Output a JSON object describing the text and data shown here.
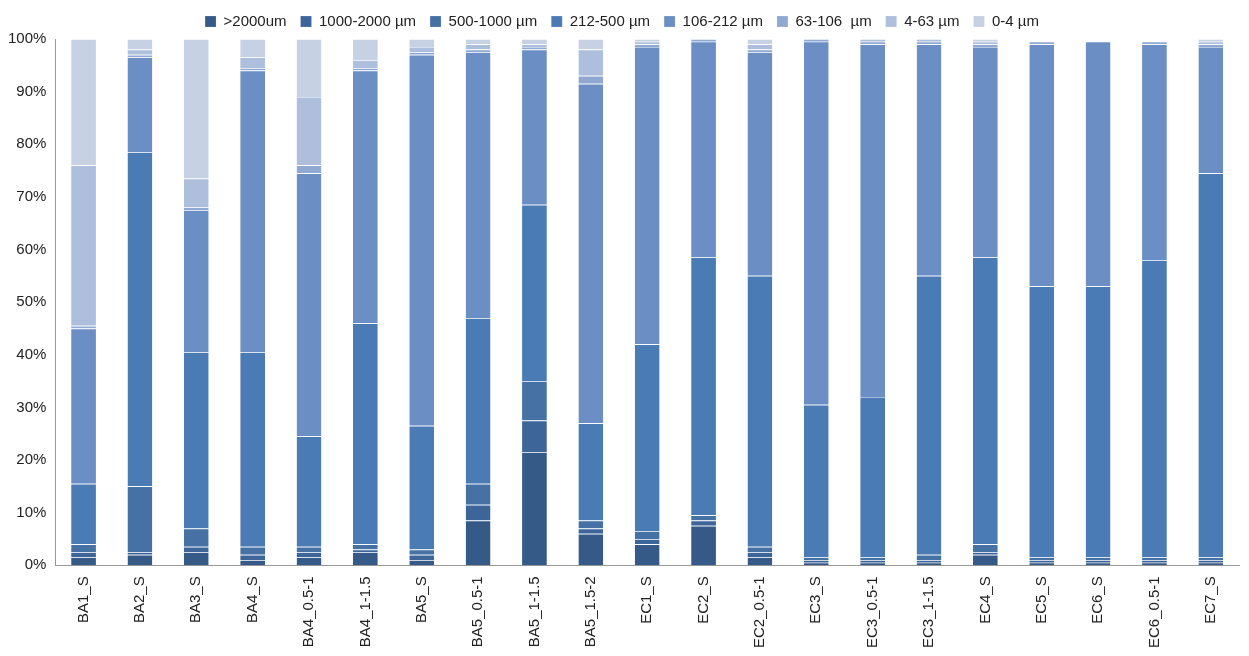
{
  "chart_data": {
    "type": "bar",
    "stacked": true,
    "legend": "top",
    "grid": false,
    "categories": [
      "BA1_S",
      "BA2_S",
      "BA3_S",
      "BA4_S",
      "BA4_0.5-1",
      "BA4_1-1.5",
      "BA5_S",
      "BA5_0.5-1",
      "BA5_1-1.5",
      "BA5_1.5-2",
      "EC1_S",
      "EC2_S",
      "EC2_0.5-1",
      "EC3_S",
      "EC3_0.5-1",
      "EC3_1-1.5",
      "EC4_S",
      "EC5_S",
      "EC6_S",
      "EC6_0.5-1",
      "EC7_S"
    ],
    "ylim": [
      0,
      100
    ],
    "yticks": [
      {
        "value": 0,
        "label": "0%"
      },
      {
        "value": 10,
        "label": "10%"
      },
      {
        "value": 20,
        "label": "20%"
      },
      {
        "value": 30,
        "label": "30%"
      },
      {
        "value": 40,
        "label": "40%"
      },
      {
        "value": 50,
        "label": "50%"
      },
      {
        "value": 60,
        "label": "60%"
      },
      {
        "value": 70,
        "label": "70%"
      },
      {
        "value": 80,
        "label": "80%"
      },
      {
        "value": 90,
        "label": "90%"
      },
      {
        "value": 100,
        "label": "100%"
      }
    ],
    "series": [
      {
        "name": ">2000um",
        "color": "#365a88",
        "values": [
          1.5,
          2,
          2.5,
          1,
          1.5,
          2.5,
          1,
          8.5,
          21.5,
          6,
          4,
          7.5,
          1.5,
          0.5,
          0.5,
          0.5,
          2,
          0.5,
          0.5,
          0.5,
          0.5
        ]
      },
      {
        "name": "1000-2000 µm",
        "color": "#3e6599",
        "values": [
          1,
          0.5,
          1,
          1,
          1,
          0.5,
          1,
          3,
          6,
          1,
          1,
          1,
          1,
          0.5,
          0.5,
          0.5,
          0.5,
          0.5,
          0.5,
          0.5,
          0.5
        ]
      },
      {
        "name": "500-1000 µm",
        "color": "#4571a5",
        "values": [
          1.5,
          12.5,
          3.5,
          1.5,
          1,
          1,
          1,
          4,
          7.5,
          1.5,
          1.5,
          1,
          1,
          0.5,
          0.5,
          1,
          1.5,
          0.5,
          0.5,
          0.5,
          0.5
        ]
      },
      {
        "name": "212-500 µm",
        "color": "#4a7bb5",
        "values": [
          11.5,
          63.5,
          33.5,
          37,
          21,
          42,
          23.5,
          31.5,
          33.5,
          18.5,
          35.5,
          49,
          51.5,
          29,
          30.5,
          53,
          54.5,
          51.5,
          51.5,
          56.5,
          73
        ]
      },
      {
        "name": "106-212 µm",
        "color": "#6b8fc4",
        "values": [
          29.5,
          18,
          27,
          53.5,
          50,
          48,
          70.5,
          50.5,
          29.5,
          64.5,
          56.5,
          41,
          42.5,
          69,
          67,
          44,
          40,
          46,
          46.5,
          41,
          24
        ]
      },
      {
        "name": "63-106  µm",
        "color": "#8fa9d3",
        "values": [
          0.5,
          0.5,
          0.5,
          0.5,
          1.5,
          0.5,
          0.5,
          0.5,
          0.5,
          1.5,
          0.5,
          0.5,
          0.5,
          0.5,
          0.5,
          0.5,
          0.5,
          0.5,
          0,
          0.5,
          0.5
        ]
      },
      {
        "name": "4-63 µm",
        "color": "#adbfdc",
        "values": [
          30.5,
          1,
          5.5,
          2,
          13,
          1.5,
          1,
          1,
          0.5,
          5,
          0.5,
          0,
          1,
          0,
          0.5,
          0.5,
          0.5,
          0,
          0,
          0,
          0.5
        ]
      },
      {
        "name": "0-4 µm",
        "color": "#c7d1e4",
        "values": [
          24,
          2,
          26.5,
          3.5,
          11,
          4,
          1.5,
          1,
          1,
          2,
          0.5,
          0,
          1,
          0,
          0,
          0,
          0.5,
          0,
          0,
          0,
          0.5
        ]
      }
    ]
  }
}
